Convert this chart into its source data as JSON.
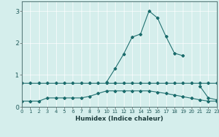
{
  "title": "",
  "xlabel": "Humidex (Indice chaleur)",
  "background_color": "#d5eeec",
  "line_color": "#1a6b6b",
  "x_values": [
    0,
    1,
    2,
    3,
    4,
    5,
    6,
    7,
    8,
    9,
    10,
    11,
    12,
    13,
    14,
    15,
    16,
    17,
    18,
    19,
    20,
    21,
    22,
    23
  ],
  "line1": [
    0.75,
    0.75,
    0.75,
    0.75,
    0.75,
    0.75,
    0.75,
    0.75,
    0.75,
    0.75,
    0.75,
    0.75,
    0.75,
    0.75,
    0.75,
    0.75,
    0.75,
    0.75,
    0.75,
    0.75,
    0.75,
    0.75,
    0.75,
    0.75
  ],
  "line2": [
    0.18,
    0.18,
    0.18,
    0.28,
    0.28,
    0.28,
    0.28,
    0.28,
    0.33,
    0.42,
    0.5,
    0.5,
    0.5,
    0.5,
    0.5,
    0.5,
    0.46,
    0.42,
    0.37,
    0.32,
    0.27,
    0.22,
    0.18,
    0.18
  ],
  "line3_x": [
    10,
    11,
    12,
    13,
    14,
    15,
    16,
    17,
    18,
    19
  ],
  "line3_y": [
    0.78,
    1.2,
    1.65,
    2.18,
    2.28,
    3.0,
    2.78,
    2.2,
    1.68,
    1.6
  ],
  "line4_x": [
    21,
    22,
    23
  ],
  "line4_y": [
    0.65,
    0.28,
    0.22
  ],
  "xlim": [
    0,
    23
  ],
  "ylim": [
    0,
    3.3
  ],
  "yticks": [
    0,
    1,
    2,
    3
  ],
  "xticks": [
    0,
    1,
    2,
    3,
    4,
    5,
    6,
    7,
    8,
    9,
    10,
    11,
    12,
    13,
    14,
    15,
    16,
    17,
    18,
    19,
    20,
    21,
    22,
    23
  ],
  "grid_color": "#ffffff",
  "tick_label_color": "#1a5555",
  "xlabel_color": "#1a3a3a"
}
